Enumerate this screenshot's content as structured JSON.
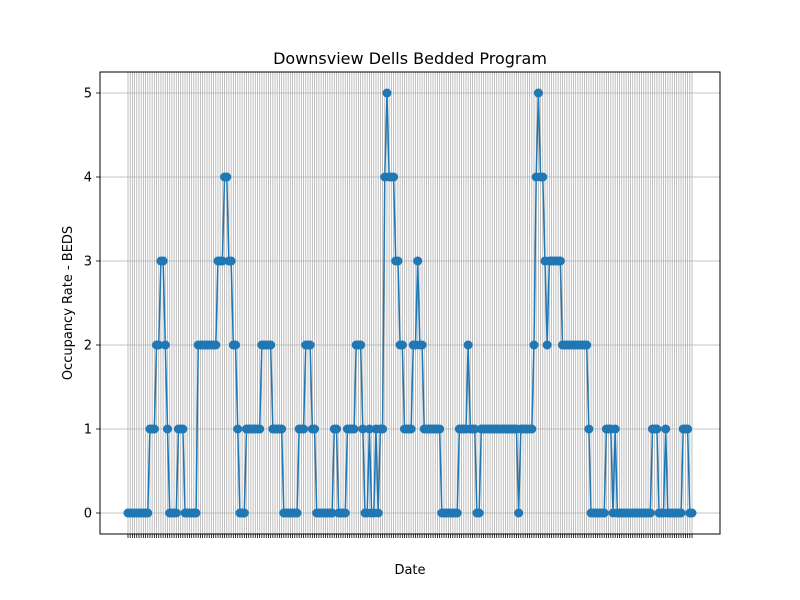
{
  "chart_data": {
    "type": "line",
    "title": "Downsview Dells Bedded Program",
    "xlabel": "Date",
    "ylabel": "Occupancy Rate - BEDS",
    "ylim": [
      -0.25,
      5.25
    ],
    "yticks": [
      0,
      1,
      2,
      3,
      4,
      5
    ],
    "grid": true,
    "marker": "circle",
    "colors": {
      "series": "#1f77b4",
      "grid": "#b0b0b0"
    },
    "series": [
      {
        "values": [
          0,
          0,
          0,
          0,
          0,
          0,
          0,
          0,
          0,
          0,
          1,
          1,
          1,
          2,
          2,
          3,
          3,
          2,
          1,
          0,
          0,
          0,
          0,
          1,
          1,
          1,
          0,
          0,
          0,
          0,
          0,
          0,
          2,
          2,
          2,
          2,
          2,
          2,
          2,
          2,
          2,
          3,
          3,
          3,
          4,
          4,
          3,
          3,
          2,
          2,
          1,
          0,
          0,
          0,
          1,
          1,
          1,
          1,
          1,
          1,
          1,
          2,
          2,
          2,
          2,
          2,
          1,
          1,
          1,
          1,
          1,
          0,
          0,
          0,
          0,
          0,
          0,
          0,
          1,
          1,
          1,
          2,
          2,
          2,
          1,
          1,
          0,
          0,
          0,
          0,
          0,
          0,
          0,
          0,
          1,
          1,
          0,
          0,
          0,
          0,
          1,
          1,
          1,
          1,
          2,
          2,
          2,
          1,
          0,
          0,
          1,
          0,
          0,
          1,
          0,
          1,
          1,
          4,
          5,
          4,
          4,
          4,
          3,
          3,
          2,
          2,
          1,
          1,
          1,
          1,
          2,
          2,
          3,
          2,
          2,
          1,
          1,
          1,
          1,
          1,
          1,
          1,
          1,
          0,
          0,
          0,
          0,
          0,
          0,
          0,
          0,
          1,
          1,
          1,
          1,
          2,
          1,
          1,
          1,
          0,
          0,
          1,
          1,
          1,
          1,
          1,
          1,
          1,
          1,
          1,
          1,
          1,
          1,
          1,
          1,
          1,
          1,
          1,
          0,
          1,
          1,
          1,
          1,
          1,
          1,
          2,
          4,
          5,
          4,
          4,
          3,
          2,
          3,
          3,
          3,
          3,
          3,
          3,
          2,
          2,
          2,
          2,
          2,
          2,
          2,
          2,
          2,
          2,
          2,
          2,
          1,
          0,
          0,
          0,
          0,
          0,
          0,
          0,
          1,
          1,
          1,
          0,
          1,
          0,
          0,
          0,
          0,
          0,
          0,
          0,
          0,
          0,
          0,
          0,
          0,
          0,
          0,
          0,
          0,
          1,
          1,
          1,
          0,
          0,
          0,
          1,
          0,
          0,
          0,
          0,
          0,
          0,
          0,
          1,
          1,
          1,
          0,
          0
        ]
      }
    ]
  }
}
